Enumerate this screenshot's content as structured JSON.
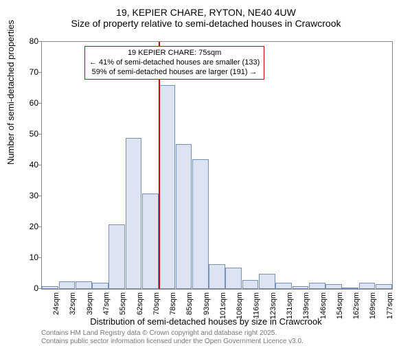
{
  "title_main": "19, KEPIER CHARE, RYTON, NE40 4UW",
  "title_sub": "Size of property relative to semi-detached houses in Crawcrook",
  "ylabel": "Number of semi-detached properties",
  "xlabel": "Distribution of semi-detached houses by size in Crawcrook",
  "ylim": [
    0,
    80
  ],
  "ytick_step": 10,
  "x_categories": [
    "24sqm",
    "32sqm",
    "39sqm",
    "47sqm",
    "55sqm",
    "62sqm",
    "70sqm",
    "78sqm",
    "85sqm",
    "93sqm",
    "101sqm",
    "108sqm",
    "116sqm",
    "123sqm",
    "131sqm",
    "139sqm",
    "146sqm",
    "154sqm",
    "162sqm",
    "169sqm",
    "177sqm"
  ],
  "values": [
    1,
    2.5,
    2.5,
    2,
    21,
    49,
    31,
    66,
    47,
    42,
    8,
    7,
    3,
    5,
    2,
    1,
    2,
    1.5,
    0,
    2,
    1.5
  ],
  "bar_fill": "#dbe4f0",
  "bar_border": "#7890b8",
  "grid_color": "#888888",
  "background_color": "#ffffff",
  "marker_color": "#cc0000",
  "marker_bin_index": 7,
  "annotation": {
    "line1": "19 KEPIER CHARE: 75sqm",
    "line2": "← 41% of semi-detached houses are smaller (133)",
    "line3": "59% of semi-detached houses are larger (191) →"
  },
  "footer_line1": "Contains HM Land Registry data © Crown copyright and database right 2025.",
  "footer_line2": "Contains public sector information licensed under the Open Government Licence v3.0.",
  "font_family": "Arial, sans-serif",
  "title_fontsize": 14,
  "label_fontsize": 13,
  "tick_fontsize": 12,
  "xtick_fontsize": 11,
  "annotation_fontsize": 11,
  "footer_fontsize": 10
}
